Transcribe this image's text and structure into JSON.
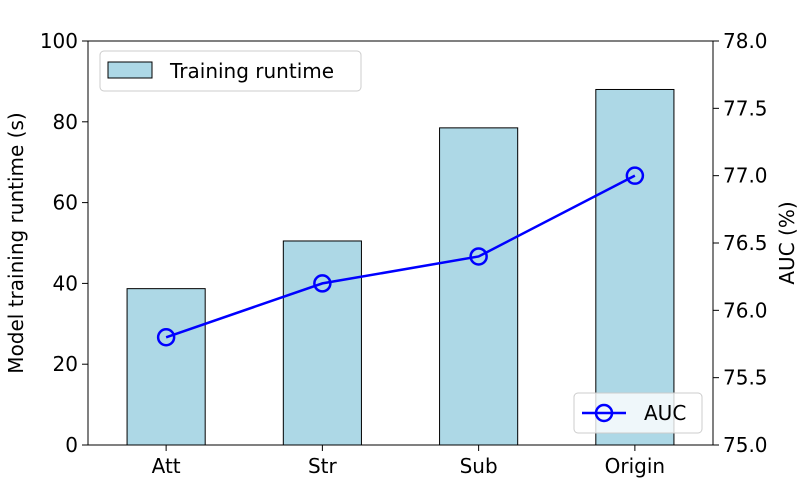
{
  "chart_data": {
    "type": "bar",
    "categories": [
      "Att",
      "Str",
      "Sub",
      "Origin"
    ],
    "series": [
      {
        "name": "Training runtime",
        "type": "bar",
        "axis": "left",
        "values": [
          38.7,
          50.5,
          78.5,
          88.0
        ],
        "color": "#add8e6",
        "edge_color": "#000000"
      },
      {
        "name": "AUC",
        "type": "line",
        "axis": "right",
        "values": [
          75.8,
          76.2,
          76.4,
          77.0
        ],
        "color": "#0000ff",
        "marker": "open-circle"
      }
    ],
    "title": "",
    "xlabel": "",
    "ylabel": "Model training runtime (s)",
    "ylabel_right": "AUC (%)",
    "ylim": [
      0,
      100
    ],
    "ylim_right": [
      75.0,
      78.0
    ],
    "yticks": [
      "0",
      "20",
      "40",
      "60",
      "80",
      "100"
    ],
    "yticks_right": [
      "75.0",
      "75.5",
      "76.0",
      "76.5",
      "77.0",
      "77.5",
      "78.0"
    ],
    "grid": false,
    "legends": [
      {
        "series": "Training runtime",
        "placement": "top-left"
      },
      {
        "series": "AUC",
        "placement": "bottom-right"
      }
    ]
  }
}
